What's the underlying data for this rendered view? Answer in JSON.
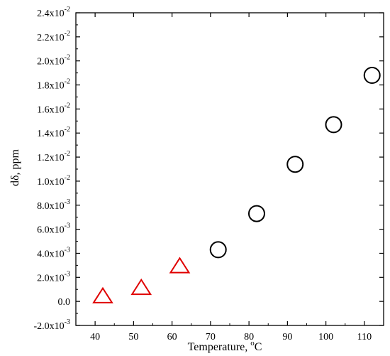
{
  "chart_data": {
    "type": "scatter",
    "xlabel": "Temperature, °C",
    "ylabel": "dδ, ppm",
    "xlim": [
      35,
      115
    ],
    "ylim": [
      -0.002,
      0.024
    ],
    "x_ticks": [
      40,
      50,
      60,
      70,
      80,
      90,
      100,
      110
    ],
    "y_ticks": [
      {
        "value": -0.002,
        "mantissa": "-2.0x10",
        "exp": "-3"
      },
      {
        "value": 0.0,
        "mantissa": "0.0",
        "exp": ""
      },
      {
        "value": 0.002,
        "mantissa": "2.0x10",
        "exp": "-3"
      },
      {
        "value": 0.004,
        "mantissa": "4.0x10",
        "exp": "-3"
      },
      {
        "value": 0.006,
        "mantissa": "6.0x10",
        "exp": "-3"
      },
      {
        "value": 0.008,
        "mantissa": "8.0x10",
        "exp": "-3"
      },
      {
        "value": 0.01,
        "mantissa": "1.0x10",
        "exp": "-2"
      },
      {
        "value": 0.012,
        "mantissa": "1.2x10",
        "exp": "-2"
      },
      {
        "value": 0.014,
        "mantissa": "1.4x10",
        "exp": "-2"
      },
      {
        "value": 0.016,
        "mantissa": "1.6x10",
        "exp": "-2"
      },
      {
        "value": 0.018,
        "mantissa": "1.8x10",
        "exp": "-2"
      },
      {
        "value": 0.02,
        "mantissa": "2.0x10",
        "exp": "-2"
      },
      {
        "value": 0.022,
        "mantissa": "2.2x10",
        "exp": "-2"
      },
      {
        "value": 0.024,
        "mantissa": "2.4x10",
        "exp": "-2"
      }
    ],
    "series": [
      {
        "marker": "triangle",
        "color": "#e00000",
        "points": [
          {
            "x": 42,
            "y": 0.0004
          },
          {
            "x": 52,
            "y": 0.0011
          },
          {
            "x": 62,
            "y": 0.0029
          }
        ]
      },
      {
        "marker": "circle",
        "color": "#000000",
        "points": [
          {
            "x": 72,
            "y": 0.0043
          },
          {
            "x": 82,
            "y": 0.0073
          },
          {
            "x": 92,
            "y": 0.0114
          },
          {
            "x": 102,
            "y": 0.0147
          },
          {
            "x": 112,
            "y": 0.0188
          }
        ]
      }
    ],
    "grid": false,
    "legend": "none"
  }
}
